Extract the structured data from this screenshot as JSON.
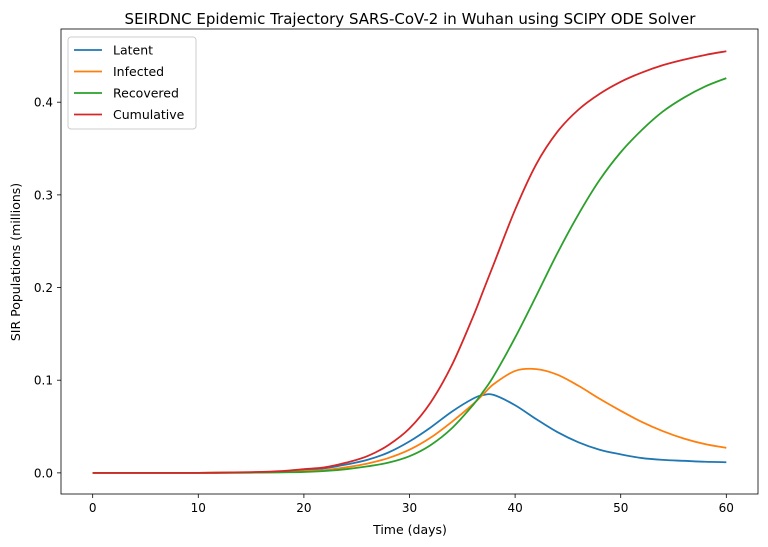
{
  "chart_data": {
    "type": "line",
    "title": "SEIRDNC Epidemic Trajectory SARS-CoV-2 in Wuhan using SCIPY ODE Solver",
    "xlabel": "Time (days)",
    "ylabel": "SIR Populations (millions)",
    "xlim": [
      -3,
      63
    ],
    "ylim": [
      -0.0228,
      0.479
    ],
    "xticks": [
      0,
      10,
      20,
      30,
      40,
      50,
      60
    ],
    "xtick_labels": [
      "0",
      "10",
      "20",
      "30",
      "40",
      "50",
      "60"
    ],
    "yticks": [
      0.0,
      0.1,
      0.2,
      0.3,
      0.4
    ],
    "ytick_labels": [
      "0.0",
      "0.1",
      "0.2",
      "0.3",
      "0.4"
    ],
    "grid": false,
    "legend": "top-left",
    "x": [
      0,
      5,
      10,
      15,
      18,
      20,
      22,
      24,
      26,
      28,
      30,
      32,
      34,
      36,
      37,
      38,
      40,
      42,
      44,
      46,
      48,
      50,
      52,
      54,
      56,
      58,
      60
    ],
    "series": [
      {
        "name": "Latent",
        "color": "#1f77b4",
        "values": [
          0.0,
          0.0,
          0.0,
          0.0005,
          0.0015,
          0.003,
          0.005,
          0.009,
          0.014,
          0.022,
          0.034,
          0.049,
          0.066,
          0.08,
          0.084,
          0.084,
          0.073,
          0.058,
          0.044,
          0.033,
          0.025,
          0.02,
          0.016,
          0.014,
          0.013,
          0.012,
          0.0115
        ]
      },
      {
        "name": "Infected",
        "color": "#ff7f0e",
        "values": [
          0.0,
          0.0,
          0.0,
          0.0003,
          0.0008,
          0.002,
          0.003,
          0.006,
          0.01,
          0.016,
          0.025,
          0.038,
          0.055,
          0.074,
          0.085,
          0.096,
          0.11,
          0.112,
          0.106,
          0.094,
          0.08,
          0.067,
          0.055,
          0.045,
          0.037,
          0.031,
          0.027
        ]
      },
      {
        "name": "Recovered",
        "color": "#2ca02c",
        "values": [
          0.0,
          0.0,
          0.0,
          0.0002,
          0.0006,
          0.001,
          0.002,
          0.004,
          0.007,
          0.011,
          0.018,
          0.03,
          0.048,
          0.073,
          0.088,
          0.105,
          0.146,
          0.191,
          0.237,
          0.279,
          0.316,
          0.346,
          0.37,
          0.39,
          0.405,
          0.417,
          0.426
        ]
      },
      {
        "name": "Cumulative",
        "color": "#d62728",
        "values": [
          0.0,
          0.0,
          0.0,
          0.0008,
          0.002,
          0.004,
          0.006,
          0.011,
          0.018,
          0.03,
          0.048,
          0.076,
          0.116,
          0.168,
          0.197,
          0.226,
          0.284,
          0.333,
          0.368,
          0.392,
          0.409,
          0.422,
          0.432,
          0.44,
          0.446,
          0.451,
          0.455
        ]
      }
    ]
  }
}
